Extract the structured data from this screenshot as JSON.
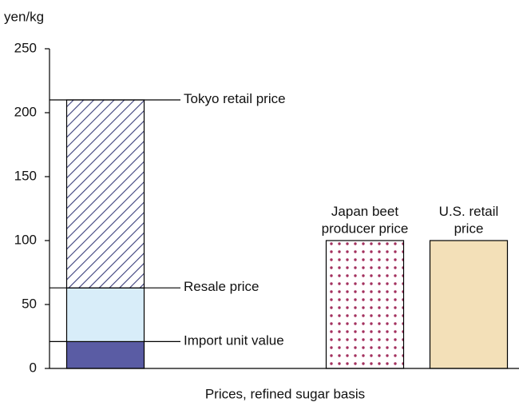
{
  "chart_data": {
    "type": "bar",
    "stacked": true,
    "y_label": "yen/kg",
    "x_label": "Prices, refined sugar basis",
    "categories": [
      null,
      null,
      null
    ],
    "ylim": [
      0,
      250
    ],
    "yticks": [
      0,
      50,
      100,
      150,
      200,
      250
    ],
    "series": [
      {
        "name": "Import unit value",
        "color": "#5a5ca4",
        "pattern": "solid",
        "values": [
          21,
          null,
          null
        ]
      },
      {
        "name": "Resale price",
        "color": "#d8edf9",
        "pattern": "solid",
        "values": [
          42,
          null,
          null
        ]
      },
      {
        "name": "Tokyo retail price",
        "color": "#3b3f7c",
        "pattern": "hatch",
        "values": [
          147,
          null,
          null
        ]
      },
      {
        "name": "Japan beet\nproducer price",
        "color": "#a3305e",
        "pattern": "dots",
        "values": [
          null,
          100,
          null
        ]
      },
      {
        "name": "U.S. retail\nprice",
        "color": "#f3e0b8",
        "pattern": "solid",
        "values": [
          null,
          null,
          100
        ]
      }
    ]
  }
}
